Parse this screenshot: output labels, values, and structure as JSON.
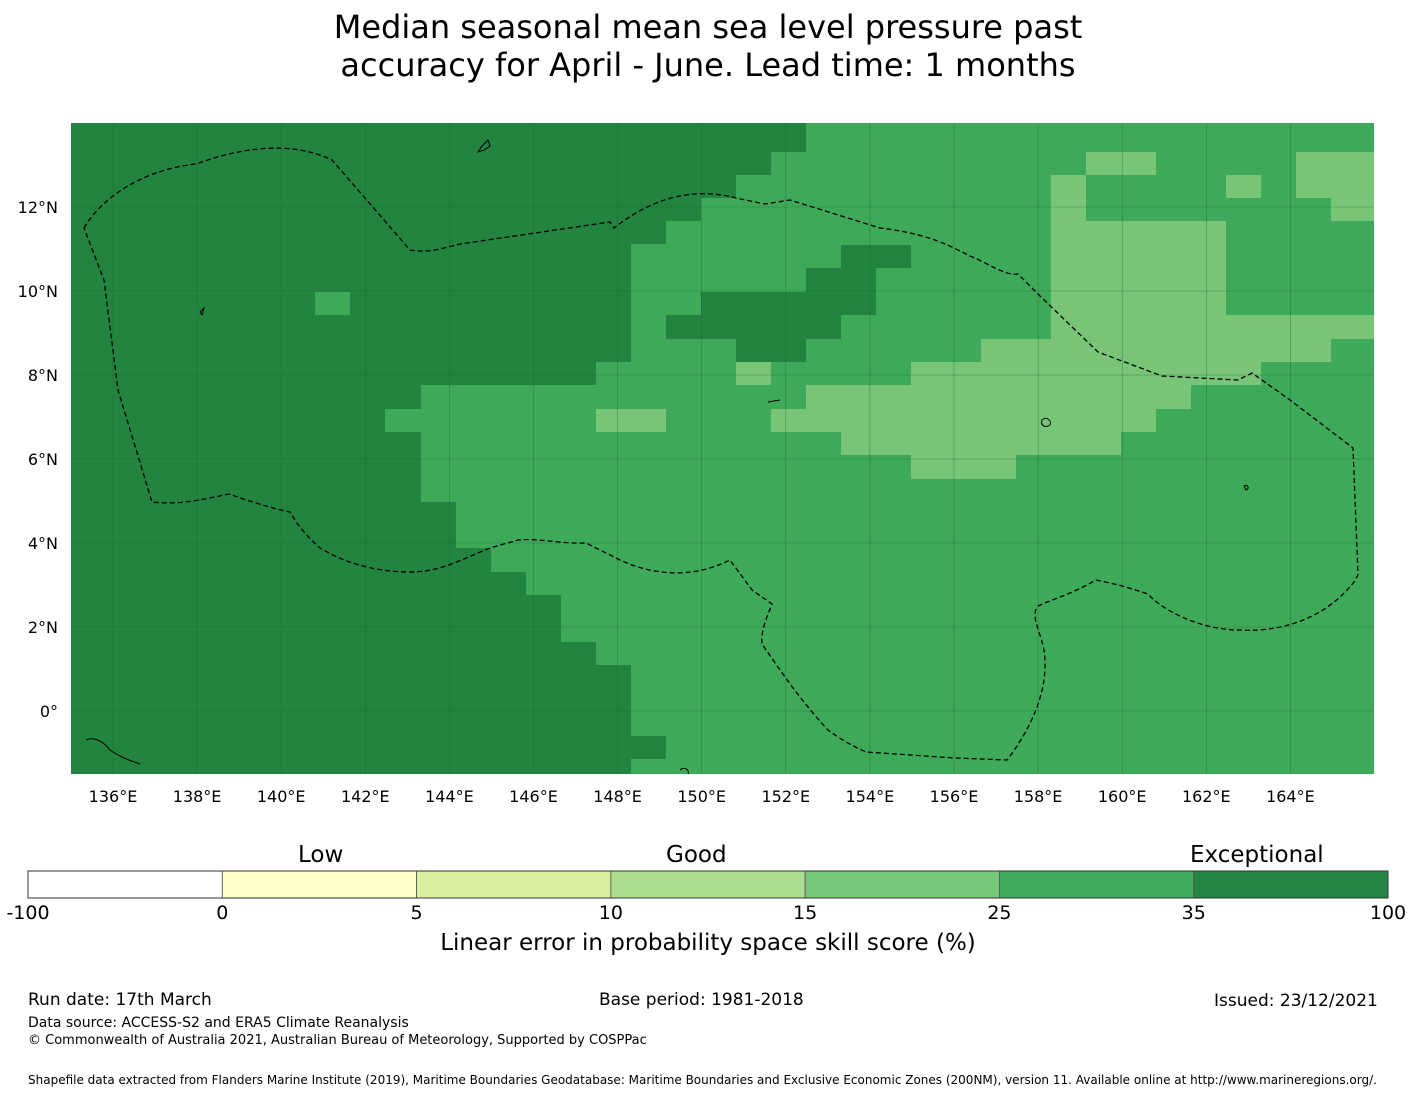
{
  "title_line1": "Median seasonal mean sea level pressure past",
  "title_line2": "accuracy for April - June. Lead time: 1 months",
  "map": {
    "lon_labels": [
      "136°E",
      "138°E",
      "140°E",
      "142°E",
      "144°E",
      "146°E",
      "148°E",
      "150°E",
      "152°E",
      "154°E",
      "156°E",
      "158°E",
      "160°E",
      "162°E",
      "164°E"
    ],
    "lat_labels": [
      "12°N",
      "10°N",
      "8°N",
      "6°N",
      "4°N",
      "2°N",
      "0°"
    ],
    "colors": {
      "exceptional": "#23843f",
      "good_high": "#3fa95a",
      "good_mid": "#79c578",
      "boundary_line": "#000000"
    }
  },
  "colorbar": {
    "categories": [
      "Low",
      "Good",
      "Exceptional"
    ],
    "ticks": [
      "-100",
      "0",
      "5",
      "10",
      "15",
      "25",
      "35",
      "100"
    ],
    "colors": [
      "#ffffff",
      "#ffffcc",
      "#d9f0a3",
      "#addd8e",
      "#78c679",
      "#41ab5d",
      "#238443"
    ],
    "label": "Linear error in probability space skill score (%)"
  },
  "footer": {
    "run_date": "Run date: 17th March",
    "base_period": "Base period: 1981-2018",
    "issued": "Issued: 23/12/2021",
    "data_source": "Data source: ACCESS-S2 and ERA5 Climate Reanalysis",
    "copyright": "© Commonwealth of Australia 2021, Australian Bureau of Meteorology, Supported by COSPPac",
    "shapefile": "Shapefile data extracted from Flanders Marine Institute (2019), Maritime Boundaries Geodatabase: Maritime Boundaries and Exclusive Economic Zones (200NM), version 11. Available online at http://www.marineregions.org/."
  }
}
